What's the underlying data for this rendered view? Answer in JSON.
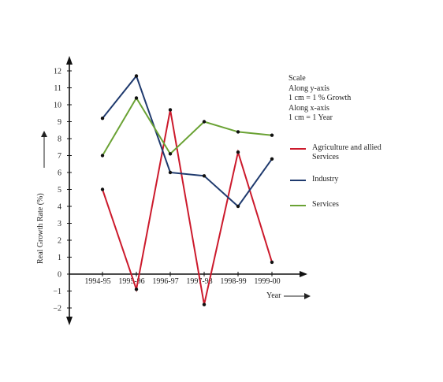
{
  "chart_data": {
    "type": "line",
    "categories": [
      "1994-95",
      "1995-96",
      "1996-97",
      "1997-98",
      "1998-99",
      "1999-00"
    ],
    "series": [
      {
        "name": "Agriculture and allied Services",
        "color": "#cc1a2c",
        "values": [
          5.0,
          -0.9,
          9.7,
          -1.8,
          7.2,
          0.7
        ]
      },
      {
        "name": "Industry",
        "color": "#1f3a6e",
        "values": [
          9.2,
          11.7,
          6.0,
          5.8,
          4.0,
          6.8
        ]
      },
      {
        "name": "Services",
        "color": "#6aa234",
        "values": [
          7.0,
          10.4,
          7.1,
          9.0,
          8.4,
          8.2
        ]
      }
    ],
    "ylabel": "Real Growth Rate  (%)",
    "xlabel": "Year",
    "ylim": [
      -2,
      12
    ],
    "yticks": [
      "12",
      "11",
      "10",
      "9",
      "8",
      "7",
      "6",
      "5",
      "4",
      "3",
      "2",
      "1",
      "0",
      "−1",
      "−2"
    ],
    "legend_position": "right",
    "grid": false
  },
  "scale_note": {
    "lines": [
      "Scale",
      "Along y-axis",
      "1 cm = 1 % Growth",
      "Along x-axis",
      "1 cm = 1 Year"
    ]
  }
}
